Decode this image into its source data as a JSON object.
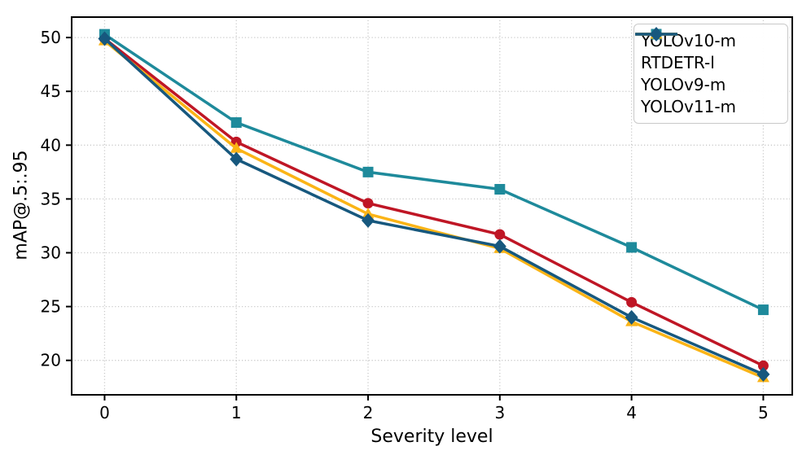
{
  "figure": {
    "background": "#ffffff",
    "spine_color": "#000000",
    "tick_color": "#000000"
  },
  "chart_data": {
    "type": "line",
    "title": "",
    "xlabel": "Severity level",
    "ylabel": "mAP@.5:.95",
    "x": [
      0,
      1,
      2,
      3,
      4,
      5
    ],
    "xticks": [
      0,
      1,
      2,
      3,
      4,
      5
    ],
    "yticks": [
      20,
      25,
      30,
      35,
      40,
      45,
      50
    ],
    "xlim": [
      -0.25,
      5.22
    ],
    "ylim": [
      16.8,
      51.9
    ],
    "grid": true,
    "grid_color": "#c9c9c9",
    "legend_position": "upper right",
    "series": [
      {
        "name": "YOLOv10-m",
        "color": "#bf1625",
        "marker": "circle",
        "values": [
          49.9,
          40.3,
          34.6,
          31.7,
          25.4,
          19.5
        ]
      },
      {
        "name": "RTDETR-l",
        "color": "#1e8a9b",
        "marker": "square",
        "values": [
          50.3,
          42.1,
          37.5,
          35.9,
          30.5,
          24.7
        ]
      },
      {
        "name": "YOLOv9-m",
        "color": "#fbb416",
        "marker": "triangle",
        "values": [
          49.7,
          39.7,
          33.6,
          30.4,
          23.6,
          18.4
        ]
      },
      {
        "name": "YOLOv11-m",
        "color": "#17587e",
        "marker": "diamond",
        "values": [
          49.9,
          38.7,
          33.0,
          30.6,
          24.0,
          18.7
        ]
      }
    ]
  }
}
